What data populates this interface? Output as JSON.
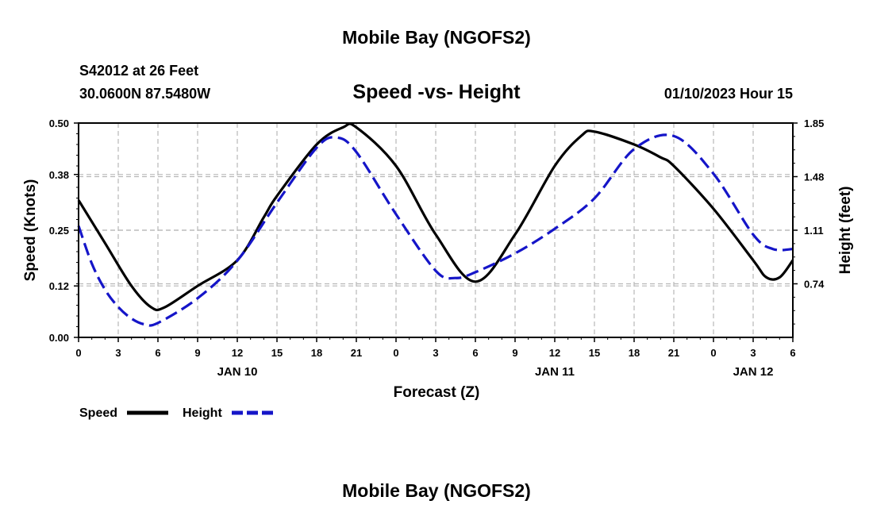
{
  "page_title": "Mobile Bay (NGOFS2)",
  "footer_title": "Mobile Bay (NGOFS2)",
  "station": "S42012 at 26 Feet",
  "coordinates": "30.0600N  87.5480W",
  "subtitle": "Speed -vs- Height",
  "datetime": "01/10/2023 Hour 15",
  "chart_data": {
    "type": "line",
    "title": "Speed -vs- Height",
    "xlabel": "Forecast (Z)",
    "ylabel": "Speed (Knots)",
    "y2label": "Height (feet)",
    "x_hours": [
      0,
      3,
      6,
      9,
      12,
      15,
      18,
      21,
      24,
      27,
      30,
      33,
      36,
      39,
      42,
      45,
      48,
      51,
      54
    ],
    "x_tick_labels": [
      "0",
      "3",
      "6",
      "9",
      "12",
      "15",
      "18",
      "21",
      "0",
      "3",
      "6",
      "9",
      "12",
      "15",
      "18",
      "21",
      "0",
      "3",
      "6"
    ],
    "date_labels": [
      {
        "hour": 12,
        "label": "JAN 10"
      },
      {
        "hour": 36,
        "label": "JAN 11"
      },
      {
        "hour": 51,
        "label": "JAN 12"
      }
    ],
    "xlim": [
      0,
      54
    ],
    "ylim": [
      0,
      0.5
    ],
    "y_ticks": [
      0.0,
      0.12,
      0.25,
      0.38,
      0.5
    ],
    "y_tick_labels": [
      "0.00",
      "0.12",
      "0.25",
      "0.38",
      "0.50"
    ],
    "y2lim": [
      0.37,
      1.85
    ],
    "y2_ticks": [
      0.74,
      1.11,
      1.48,
      1.85
    ],
    "y2_tick_labels": [
      "0.74",
      "1.11",
      "1.48",
      "1.85"
    ],
    "grid": true,
    "legend_position": "bottom-left",
    "series": [
      {
        "name": "Speed",
        "axis": "left",
        "color": "#000000",
        "style": "solid",
        "x": [
          0,
          2,
          4,
          5.5,
          6.5,
          9,
          12,
          14,
          15,
          18,
          20,
          21,
          24,
          27,
          30,
          33,
          36,
          38,
          39,
          42,
          44,
          45,
          48,
          51,
          52,
          53,
          54
        ],
        "y": [
          0.32,
          0.22,
          0.12,
          0.07,
          0.07,
          0.12,
          0.18,
          0.28,
          0.33,
          0.45,
          0.49,
          0.49,
          0.4,
          0.24,
          0.13,
          0.24,
          0.4,
          0.47,
          0.48,
          0.45,
          0.42,
          0.4,
          0.3,
          0.18,
          0.14,
          0.14,
          0.18
        ]
      },
      {
        "name": "Height",
        "axis": "right",
        "color": "#1515c8",
        "style": "dashed",
        "x": [
          0,
          1,
          2,
          3,
          4,
          5,
          6,
          9,
          12,
          15,
          18,
          19.5,
          21,
          24,
          27,
          28.5,
          30,
          33,
          36,
          39,
          42,
          45,
          48,
          51,
          52.5,
          54
        ],
        "y": [
          1.14,
          0.88,
          0.7,
          0.58,
          0.5,
          0.46,
          0.47,
          0.64,
          0.9,
          1.3,
          1.68,
          1.75,
          1.65,
          1.22,
          0.83,
          0.78,
          0.82,
          0.95,
          1.12,
          1.33,
          1.67,
          1.76,
          1.5,
          1.08,
          0.98,
          0.98
        ]
      }
    ]
  }
}
